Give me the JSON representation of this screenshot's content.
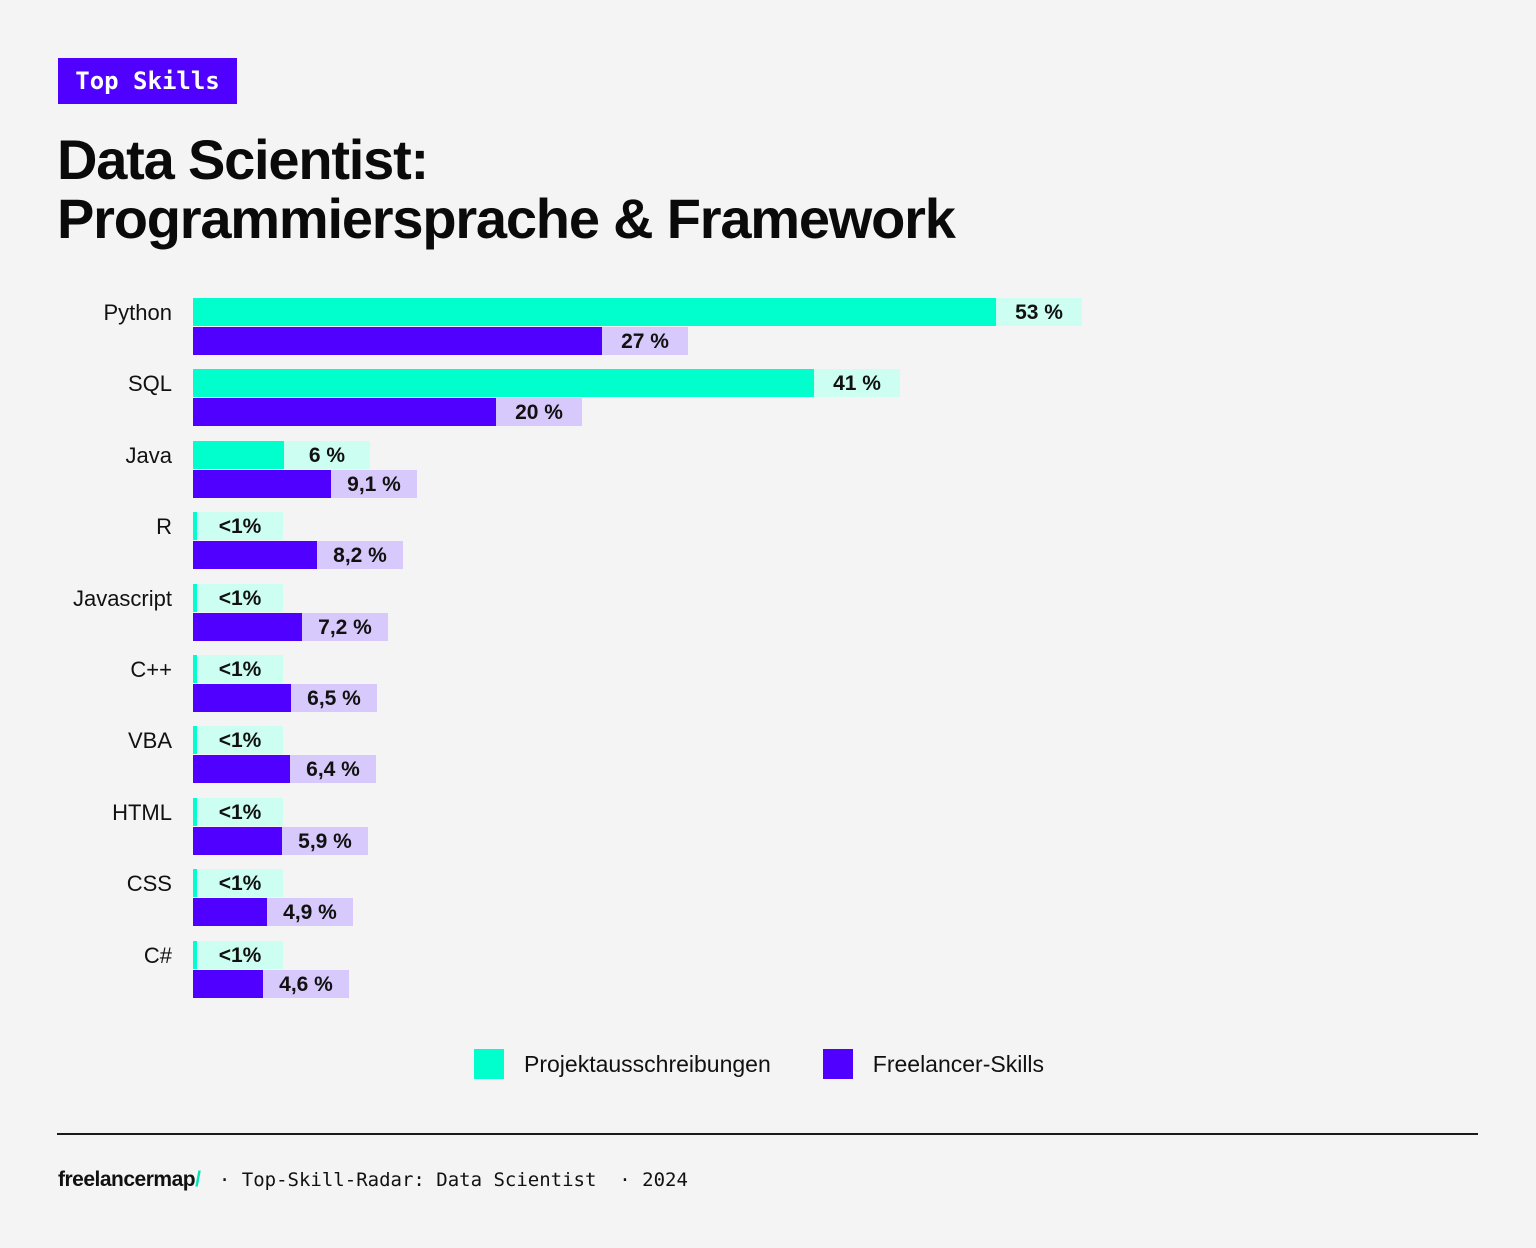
{
  "header": {
    "badge": "Top Skills",
    "title_line1": "Data Scientist:",
    "title_line2": "Programmiersprache & Framework"
  },
  "colors": {
    "projekt": "#00ffcc",
    "projekt_label_bg": "#ccfff2",
    "freelancer": "#4f00ff",
    "freelancer_label_bg": "#d7c9fb",
    "badge_bg": "#4f00ff",
    "background": "#f4f4f4"
  },
  "legend": {
    "projekt": "Projektausschreibungen",
    "freelancer": "Freelancer-Skills"
  },
  "footer": {
    "logo": "freelancermap",
    "logo_slash": "/",
    "text": "· Top-Skill-Radar: Data Scientist  · 2024"
  },
  "chart_data": {
    "type": "bar",
    "orientation": "horizontal",
    "title": "Data Scientist: Programmiersprache & Framework",
    "subtitle": "Top Skills",
    "categories": [
      "Python",
      "SQL",
      "Java",
      "R",
      "Javascript",
      "C++",
      "VBA",
      "HTML",
      "CSS",
      "C#"
    ],
    "series": [
      {
        "name": "Projektausschreibungen",
        "color": "#00ffcc",
        "values": [
          53,
          41,
          6,
          0.3,
          0.3,
          0.3,
          0.3,
          0.3,
          0.3,
          0.3
        ],
        "labels": [
          "53 %",
          "41 %",
          "6 %",
          "<1%",
          "<1%",
          "<1%",
          "<1%",
          "<1%",
          "<1%",
          "<1%"
        ]
      },
      {
        "name": "Freelancer-Skills",
        "color": "#4f00ff",
        "values": [
          27,
          20,
          9.1,
          8.2,
          7.2,
          6.5,
          6.4,
          5.9,
          4.9,
          4.6
        ],
        "labels": [
          "27 %",
          "20 %",
          "9,1 %",
          "8,2 %",
          "7,2 %",
          "6,5 %",
          "6,4 %",
          "5,9 %",
          "4,9 %",
          "4,6 %"
        ]
      }
    ],
    "xlabel": "",
    "ylabel": "",
    "grid": false,
    "legend_position": "bottom",
    "value_unit": "%"
  }
}
